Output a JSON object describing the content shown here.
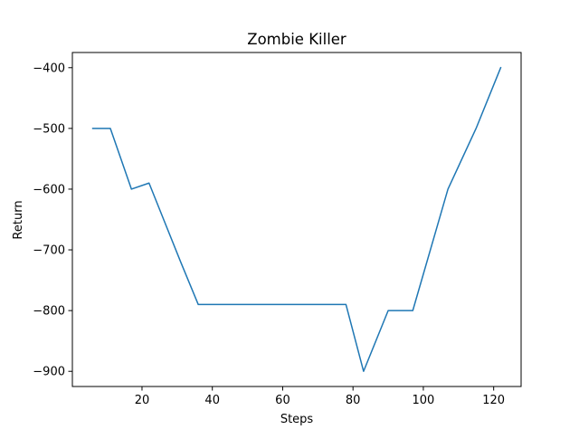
{
  "chart_data": {
    "type": "line",
    "title": "Zombie Killer",
    "xlabel": "Steps",
    "ylabel": "Return",
    "xlim": [
      0.2,
      127.8
    ],
    "ylim": [
      -925,
      -375
    ],
    "xticks": [
      20,
      40,
      60,
      80,
      100,
      120
    ],
    "yticks": [
      -900,
      -800,
      -700,
      -600,
      -500,
      -400
    ],
    "xtick_labels": [
      "20",
      "40",
      "60",
      "80",
      "100",
      "120"
    ],
    "ytick_labels": [
      "−900",
      "−800",
      "−700",
      "−600",
      "−500",
      "−400"
    ],
    "grid": false,
    "series": [
      {
        "color": "#1f77b4",
        "x": [
          6,
          11,
          17,
          22,
          31,
          36,
          78,
          83,
          90,
          97,
          107,
          115,
          122
        ],
        "y": [
          -500,
          -500,
          -600,
          -590,
          -720,
          -790,
          -790,
          -900,
          -800,
          -800,
          -600,
          -500,
          -400
        ]
      }
    ]
  }
}
